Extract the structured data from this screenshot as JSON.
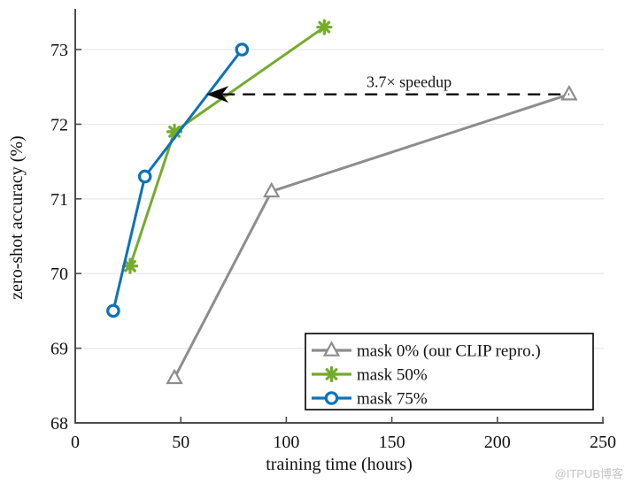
{
  "chart_data": {
    "type": "line",
    "title": "",
    "xlabel": "training time (hours)",
    "ylabel": "zero-shot accuracy (%)",
    "xlim": [
      0,
      250
    ],
    "ylim": [
      68,
      73.5
    ],
    "xticks": [
      0,
      50,
      100,
      150,
      200,
      250
    ],
    "yticks": [
      68,
      69,
      70,
      71,
      72,
      73
    ],
    "grid": "horizontal-only",
    "legend_position": "lower-right",
    "series": [
      {
        "name": "mask 0% (our CLIP repro.)",
        "color": "#8d8d8d",
        "marker": "triangle",
        "points": [
          [
            47,
            68.6
          ],
          [
            93,
            71.1
          ],
          [
            234,
            72.4
          ]
        ]
      },
      {
        "name": "mask 50%",
        "color": "#73ac2b",
        "marker": "asterisk",
        "points": [
          [
            26,
            70.1
          ],
          [
            47,
            71.9
          ],
          [
            118,
            73.3
          ]
        ]
      },
      {
        "name": "mask 75%",
        "color": "#0d72b9",
        "marker": "circle",
        "points": [
          [
            18,
            69.5
          ],
          [
            33,
            71.3
          ],
          [
            79,
            73.0
          ]
        ]
      }
    ],
    "annotation": {
      "label": "3.7× speedup",
      "y": 72.4,
      "x_start": 63,
      "x_end": 234,
      "arrow_direction": "left",
      "line_style": "dashed",
      "color": "#000000"
    },
    "colors": {
      "grid": "#eaeaea",
      "spine": "#4d4d4d",
      "background": "#ffffff",
      "legend_border": "#000000"
    }
  },
  "watermark": "@ITPUB博客"
}
